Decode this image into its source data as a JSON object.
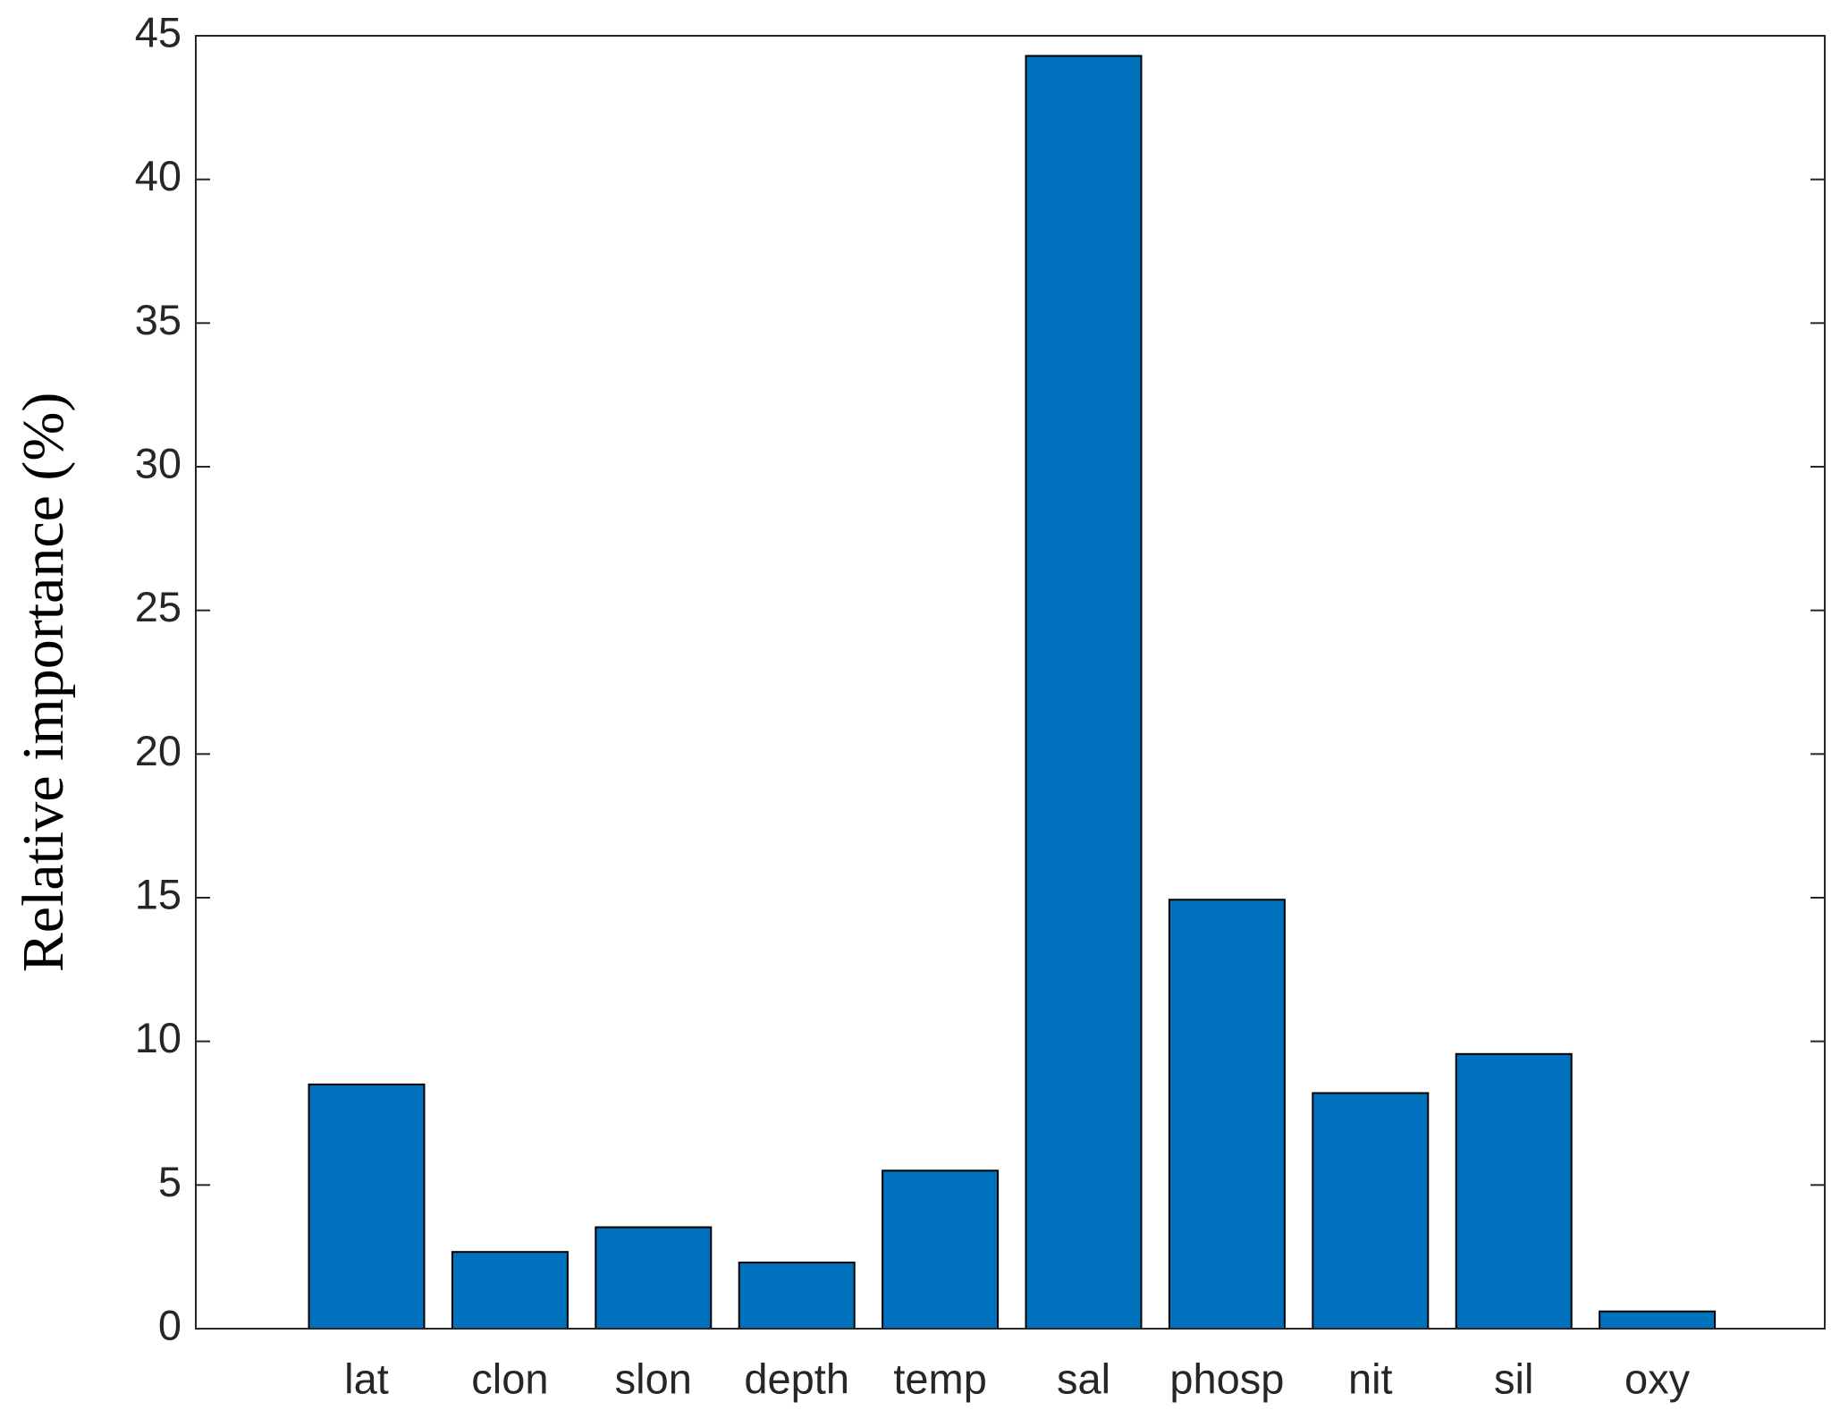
{
  "chart_data": {
    "type": "bar",
    "y_label": "Relative importance (%)",
    "categories": [
      "lat",
      "clon",
      "slon",
      "depth",
      "temp",
      "sal",
      "phosp",
      "nit",
      "sil",
      "oxy"
    ],
    "values": [
      8.5,
      2.67,
      3.53,
      2.3,
      5.5,
      44.3,
      14.93,
      8.2,
      9.56,
      0.6
    ],
    "color": "#0072bd",
    "ylim": [
      0,
      45
    ],
    "yticks": [
      0,
      5,
      10,
      15,
      20,
      25,
      30,
      35,
      40,
      45
    ],
    "grid": false
  }
}
